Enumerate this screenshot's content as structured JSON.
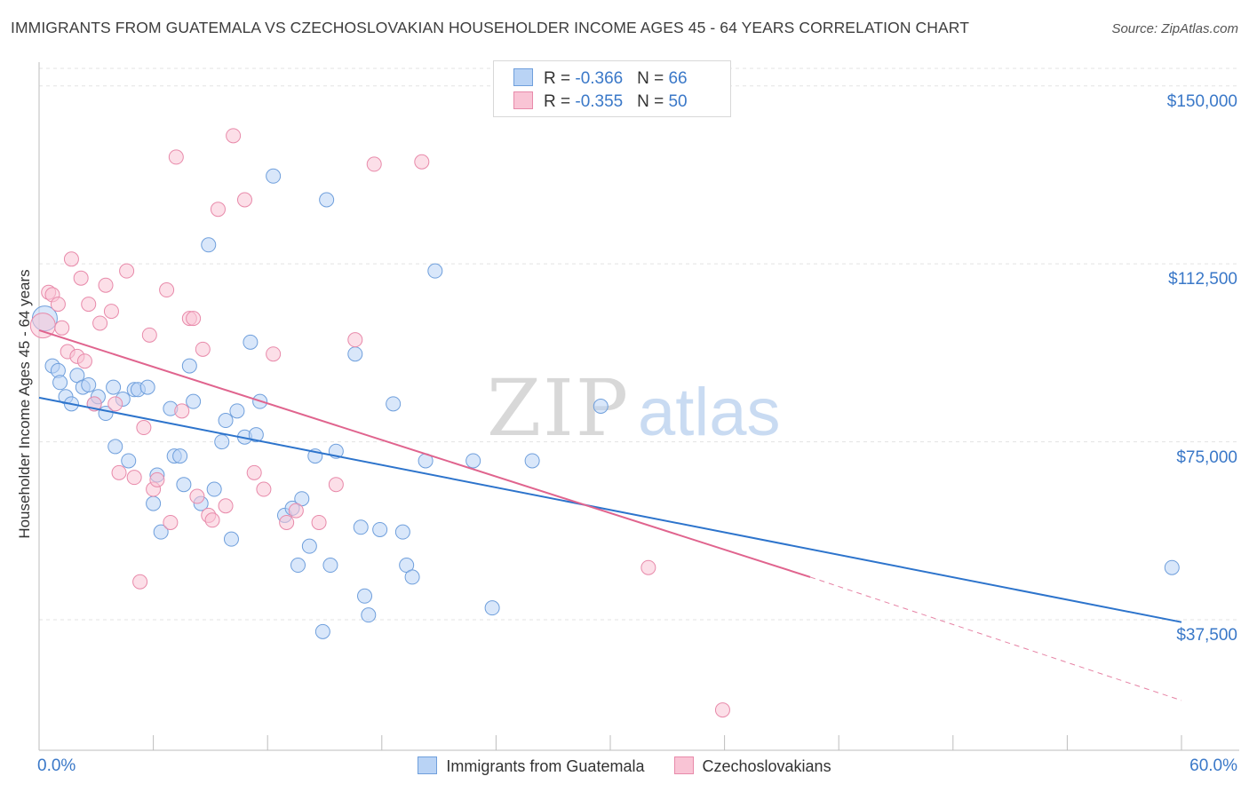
{
  "title": "IMMIGRANTS FROM GUATEMALA VS CZECHOSLOVAKIAN HOUSEHOLDER INCOME AGES 45 - 64 YEARS CORRELATION CHART",
  "source": "Source: ZipAtlas.com",
  "watermark": {
    "zip": "ZIP",
    "atlas": "atlas"
  },
  "stats": [
    {
      "r_label": "R = ",
      "r_value": "-0.366",
      "n_label": "N = ",
      "n_value": "66",
      "fill": "#b9d3f5",
      "stroke": "#6f9fdc"
    },
    {
      "r_label": "R = ",
      "r_value": "-0.355",
      "n_label": "N = ",
      "n_value": "50",
      "fill": "#f9c4d5",
      "stroke": "#e88aaa"
    }
  ],
  "chart_data": {
    "type": "scatter",
    "xlabel": "",
    "ylabel": "Householder Income Ages 45 - 64 years",
    "xlim": [
      0,
      60
    ],
    "ylim": [
      10000,
      155000
    ],
    "x_tick_labels": [
      "0.0%",
      "60.0%"
    ],
    "y_ticks": [
      37500,
      75000,
      112500,
      150000
    ],
    "y_tick_labels": [
      "$37,500",
      "$75,000",
      "$112,500",
      "$150,000"
    ],
    "grid": true,
    "legend_position": "bottom-center",
    "series": [
      {
        "name": "Immigrants from Guatemala",
        "color": "#6f9fdc",
        "fill": "#b9d3f5",
        "trend": {
          "x": [
            0,
            60
          ],
          "y": [
            84300,
            37000
          ],
          "color": "#2d74cc"
        },
        "points": [
          [
            0.3,
            101000
          ],
          [
            0.7,
            91000
          ],
          [
            1.0,
            90000
          ],
          [
            1.1,
            87500
          ],
          [
            1.4,
            84500
          ],
          [
            1.7,
            83000
          ],
          [
            2.0,
            89000
          ],
          [
            2.3,
            86500
          ],
          [
            2.6,
            87000
          ],
          [
            2.9,
            83000
          ],
          [
            3.1,
            84500
          ],
          [
            3.5,
            81000
          ],
          [
            3.9,
            86500
          ],
          [
            4.0,
            74000
          ],
          [
            4.4,
            84000
          ],
          [
            4.7,
            71000
          ],
          [
            5.0,
            86000
          ],
          [
            5.2,
            86000
          ],
          [
            5.7,
            86500
          ],
          [
            6.0,
            62000
          ],
          [
            6.2,
            68000
          ],
          [
            6.4,
            56000
          ],
          [
            6.9,
            82000
          ],
          [
            7.1,
            72000
          ],
          [
            7.4,
            72000
          ],
          [
            7.6,
            66000
          ],
          [
            7.9,
            91000
          ],
          [
            8.1,
            83500
          ],
          [
            8.5,
            62000
          ],
          [
            8.9,
            116500
          ],
          [
            9.2,
            65000
          ],
          [
            9.6,
            75000
          ],
          [
            9.8,
            79500
          ],
          [
            10.1,
            54500
          ],
          [
            10.4,
            81500
          ],
          [
            10.8,
            76000
          ],
          [
            11.1,
            96000
          ],
          [
            11.4,
            76500
          ],
          [
            11.6,
            83500
          ],
          [
            12.3,
            131000
          ],
          [
            12.9,
            59500
          ],
          [
            13.3,
            61000
          ],
          [
            13.6,
            49000
          ],
          [
            13.8,
            63000
          ],
          [
            14.2,
            53000
          ],
          [
            14.5,
            72000
          ],
          [
            14.9,
            35000
          ],
          [
            15.1,
            126000
          ],
          [
            15.3,
            49000
          ],
          [
            15.6,
            73000
          ],
          [
            16.6,
            93500
          ],
          [
            16.9,
            57000
          ],
          [
            17.1,
            42500
          ],
          [
            17.3,
            38500
          ],
          [
            17.9,
            56500
          ],
          [
            18.6,
            83000
          ],
          [
            19.1,
            56000
          ],
          [
            19.3,
            49000
          ],
          [
            19.6,
            46500
          ],
          [
            20.3,
            71000
          ],
          [
            20.8,
            111000
          ],
          [
            22.8,
            71000
          ],
          [
            23.8,
            40000
          ],
          [
            25.9,
            71000
          ],
          [
            29.5,
            82500
          ],
          [
            59.5,
            48500
          ]
        ]
      },
      {
        "name": "Czechoslovakians",
        "color": "#e88aaa",
        "fill": "#f9c4d5",
        "trend": {
          "x": [
            0,
            40.5
          ],
          "y": [
            98500,
            46500
          ],
          "color": "#e0648e"
        },
        "trend_dashed": {
          "x": [
            40.5,
            60
          ],
          "y": [
            46500,
            20500
          ]
        },
        "points": [
          [
            0.2,
            99500
          ],
          [
            0.5,
            106500
          ],
          [
            0.7,
            106000
          ],
          [
            1.0,
            104000
          ],
          [
            1.2,
            99000
          ],
          [
            1.5,
            94000
          ],
          [
            1.7,
            113500
          ],
          [
            2.0,
            93000
          ],
          [
            2.2,
            109500
          ],
          [
            2.4,
            92000
          ],
          [
            2.6,
            104000
          ],
          [
            2.9,
            83000
          ],
          [
            3.2,
            100000
          ],
          [
            3.5,
            108000
          ],
          [
            3.8,
            102500
          ],
          [
            4.0,
            83000
          ],
          [
            4.2,
            68500
          ],
          [
            4.6,
            111000
          ],
          [
            5.0,
            67500
          ],
          [
            5.3,
            45500
          ],
          [
            5.5,
            78000
          ],
          [
            5.8,
            97500
          ],
          [
            6.0,
            65000
          ],
          [
            6.2,
            67000
          ],
          [
            6.7,
            107000
          ],
          [
            6.9,
            58000
          ],
          [
            7.2,
            135000
          ],
          [
            7.5,
            81500
          ],
          [
            7.9,
            101000
          ],
          [
            8.1,
            101000
          ],
          [
            8.3,
            63500
          ],
          [
            8.6,
            94500
          ],
          [
            8.9,
            59500
          ],
          [
            9.1,
            58500
          ],
          [
            9.4,
            124000
          ],
          [
            9.8,
            61500
          ],
          [
            10.2,
            139500
          ],
          [
            10.8,
            126000
          ],
          [
            11.3,
            68500
          ],
          [
            11.8,
            65000
          ],
          [
            12.3,
            93500
          ],
          [
            13.0,
            58000
          ],
          [
            13.5,
            60500
          ],
          [
            14.7,
            58000
          ],
          [
            15.6,
            66000
          ],
          [
            16.6,
            96500
          ],
          [
            17.6,
            133500
          ],
          [
            20.1,
            134000
          ],
          [
            32.0,
            48500
          ],
          [
            35.9,
            18500
          ]
        ]
      }
    ]
  }
}
